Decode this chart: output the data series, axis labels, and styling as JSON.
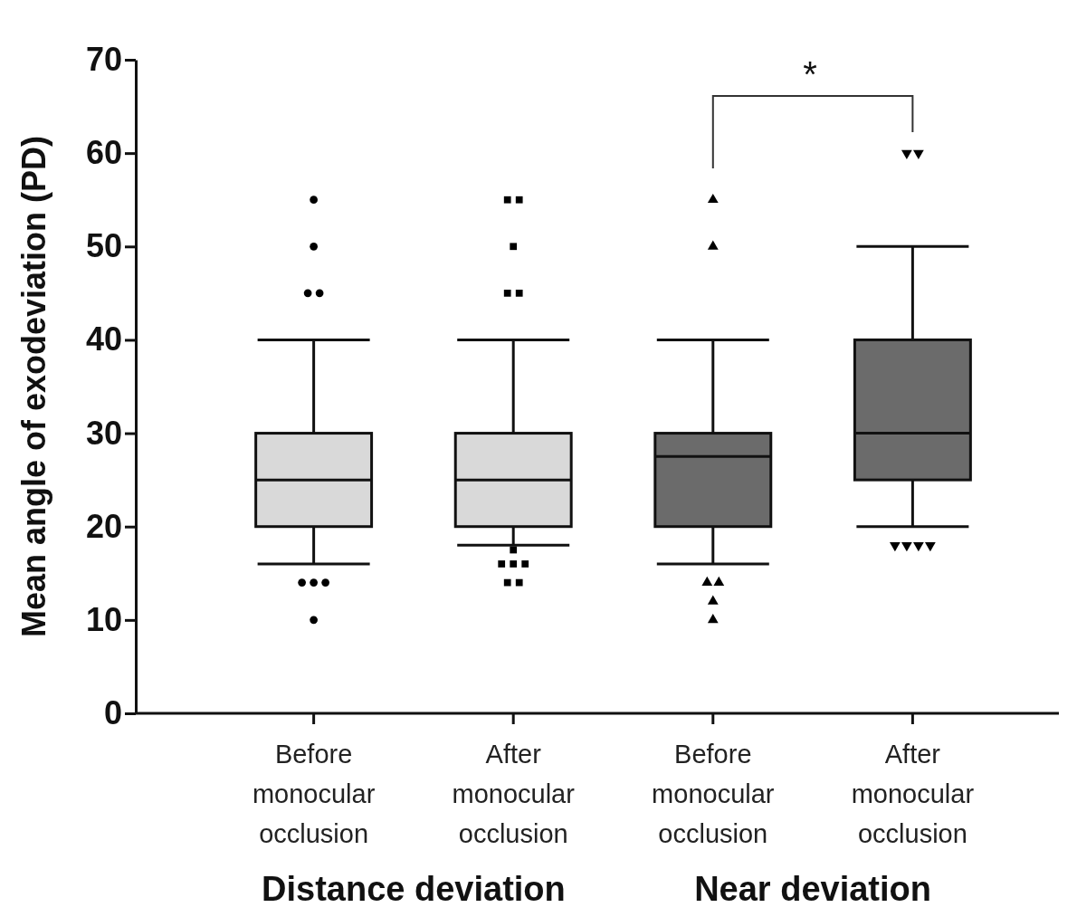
{
  "chart_data": {
    "type": "box",
    "ylabel": "Mean angle of exodeviation (PD)",
    "categories": [
      "Before monocular occlusion",
      "After monocular occlusion",
      "Before monocular occlusion",
      "After monocular occlusion"
    ],
    "ylim": [
      0,
      70
    ],
    "yticks": [
      0,
      10,
      20,
      30,
      40,
      50,
      60,
      70
    ],
    "grid": false,
    "series": [
      {
        "color": "#d9d9d9",
        "marker": "circle",
        "boxes": [
          {
            "low": 16,
            "q1": 20,
            "median": 25,
            "q3": 30,
            "high": 40,
            "outliers": [
              55,
              50,
              45,
              45,
              14,
              14,
              14,
              10
            ]
          },
          null,
          null,
          null
        ]
      },
      {
        "color": "#d9d9d9",
        "marker": "square",
        "boxes": [
          null,
          {
            "low": 18,
            "q1": 20,
            "median": 25,
            "q3": 30,
            "high": 40,
            "outliers": [
              55,
              55,
              50,
              45,
              45,
              17.5,
              16,
              16,
              16,
              14,
              14
            ]
          },
          null,
          null
        ]
      },
      {
        "color": "#6b6b6b",
        "marker": "triangle",
        "boxes": [
          null,
          null,
          {
            "low": 16,
            "q1": 20,
            "median": 27.5,
            "q3": 30,
            "high": 40,
            "outliers": [
              55,
              50,
              14,
              14,
              12,
              10
            ]
          },
          null
        ]
      },
      {
        "color": "#6b6b6b",
        "marker": "triangle-down",
        "boxes": [
          null,
          null,
          null,
          {
            "low": 20,
            "q1": 25,
            "median": 30,
            "q3": 40,
            "high": 50,
            "outliers": [
              60,
              60,
              18,
              18,
              18,
              18
            ]
          }
        ]
      }
    ],
    "annotations": [
      "Distance deviation",
      "Near deviation",
      "*"
    ]
  }
}
